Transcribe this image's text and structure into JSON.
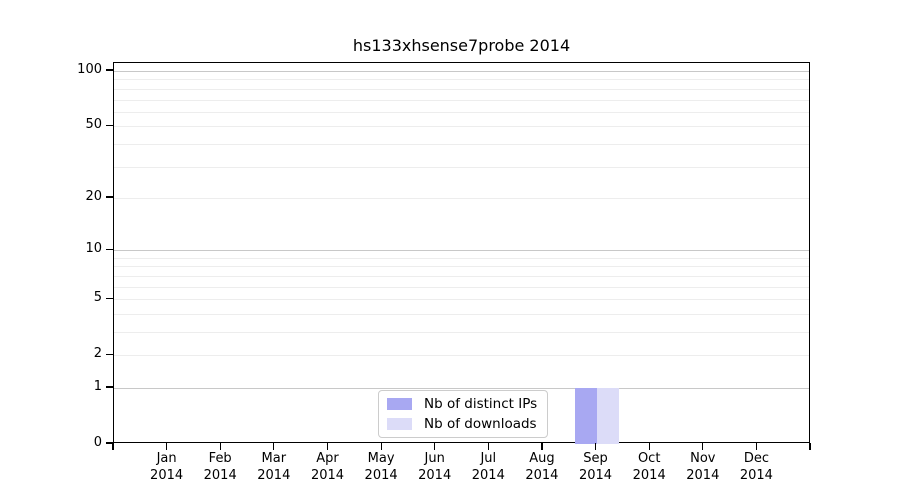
{
  "chart_data": {
    "type": "bar",
    "title": "hs133xhsense7probe 2014",
    "year_label": "2014",
    "months": [
      "Jan",
      "Feb",
      "Mar",
      "Apr",
      "May",
      "Jun",
      "Jul",
      "Aug",
      "Sep",
      "Oct",
      "Nov",
      "Dec"
    ],
    "series": [
      {
        "name": "Nb of distinct IPs",
        "color": "#a8a8f2",
        "values": [
          0,
          0,
          0,
          0,
          0,
          0,
          0,
          0,
          1,
          0,
          0,
          0
        ]
      },
      {
        "name": "Nb of downloads",
        "color": "#dcdcf8",
        "values": [
          0,
          0,
          0,
          0,
          0,
          0,
          0,
          0,
          1,
          0,
          0,
          0
        ]
      }
    ],
    "yscale": "log1p",
    "ylim": [
      0,
      100
    ],
    "yticks": [
      0,
      1,
      2,
      5,
      10,
      20,
      50,
      100
    ],
    "minor_yticks": [
      3,
      4,
      6,
      7,
      8,
      9,
      30,
      40,
      60,
      70,
      80,
      90
    ],
    "major_grid_values": [
      1,
      10,
      100
    ],
    "grid": "horizontal-only",
    "legend_position": "lower center",
    "colors": {
      "major_grid": "#c8c8c8",
      "minor_grid": "#ededed",
      "axis": "#000000",
      "text": "#000000",
      "background": "#ffffff"
    }
  }
}
